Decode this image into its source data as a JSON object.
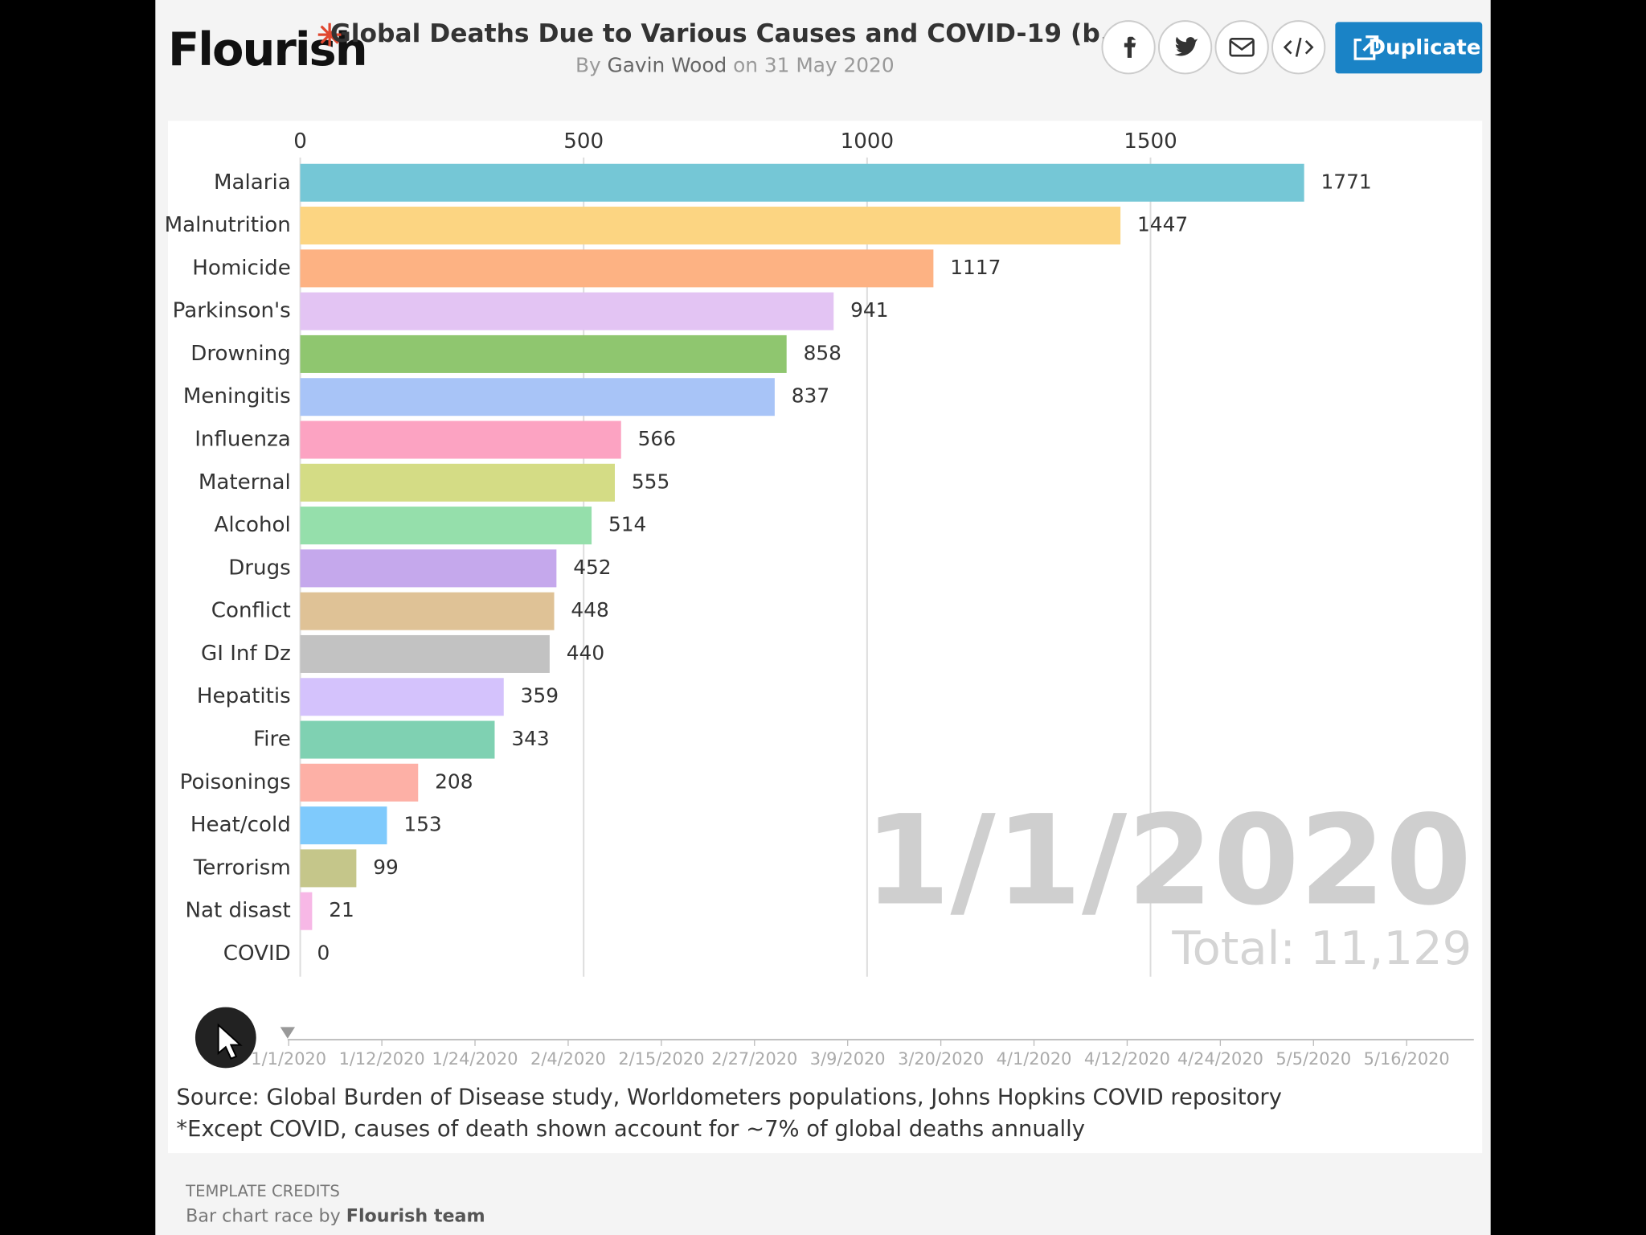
{
  "header": {
    "logo": "Flourish",
    "title": "Global Deaths Due to Various Causes and COVID-19 (b...",
    "byline_prefix": "By",
    "author": "Gavin Wood",
    "date_text": "on 31 May 2020",
    "button": "Duplicate"
  },
  "chart_data": {
    "type": "bar",
    "orientation": "horizontal",
    "categories": [
      "Malaria",
      "Malnutrition",
      "Homicide",
      "Parkinson's",
      "Drowning",
      "Meningitis",
      "Influenza",
      "Maternal",
      "Alcohol",
      "Drugs",
      "Conflict",
      "GI Inf Dz",
      "Hepatitis",
      "Fire",
      "Poisonings",
      "Heat/cold",
      "Terrorism",
      "Nat disast",
      "COVID"
    ],
    "values": [
      1771,
      1447,
      1117,
      941,
      858,
      837,
      566,
      555,
      514,
      452,
      448,
      440,
      359,
      343,
      208,
      153,
      99,
      21,
      0
    ],
    "colors": [
      "#75c7d6",
      "#fcd582",
      "#fdb283",
      "#e3c4f3",
      "#8fc66f",
      "#a8c4f7",
      "#fca3c2",
      "#d4dc85",
      "#95dfab",
      "#c5a8ec",
      "#dfc296",
      "#c2c2c2",
      "#d4c2fc",
      "#7fd1b2",
      "#fdb0a6",
      "#7fcafc",
      "#c5c68a",
      "#f7b8e6",
      "#ff8a8a"
    ],
    "xlim": [
      0,
      2000
    ],
    "xticks": [
      0,
      500,
      1000,
      1500
    ],
    "grid": true,
    "date_label": "1/1/2020",
    "total_label": "Total: 11,129"
  },
  "timeline": {
    "labels": [
      "1/1/2020",
      "1/12/2020",
      "1/24/2020",
      "2/4/2020",
      "2/15/2020",
      "2/27/2020",
      "3/9/2020",
      "3/20/2020",
      "4/1/2020",
      "4/12/2020",
      "4/24/2020",
      "5/5/2020",
      "5/16/2020"
    ]
  },
  "footer": {
    "source": "Source: Global Burden of Disease study, Worldometers populations, Johns Hopkins COVID repository",
    "note": "*Except COVID, causes of death shown account for ~7% of global deaths annually",
    "credits_heading": "TEMPLATE CREDITS",
    "credits_prefix": "Bar chart race by",
    "credits_author": "Flourish team"
  }
}
